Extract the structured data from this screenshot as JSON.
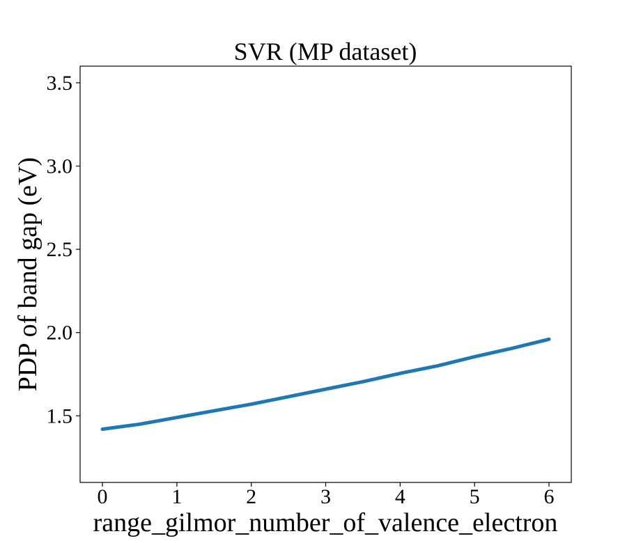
{
  "chart_data": {
    "type": "line",
    "title": "SVR (MP dataset)",
    "xlabel": "range_gilmor_number_of_valence_electron",
    "ylabel": "PDP of band gap (eV)",
    "xlim": [
      -0.3,
      6.3
    ],
    "ylim": [
      1.1,
      3.6
    ],
    "xticks": [
      "0",
      "1",
      "2",
      "3",
      "4",
      "5",
      "6"
    ],
    "yticks": [
      "1.5",
      "2.0",
      "2.5",
      "3.0",
      "3.5"
    ],
    "grid": false,
    "series": [
      {
        "color": "#1f77b4",
        "x": [
          0,
          0.5,
          1,
          1.5,
          2,
          2.5,
          3,
          3.5,
          4,
          4.5,
          5,
          5.5,
          6
        ],
        "y": [
          1.42,
          1.45,
          1.49,
          1.53,
          1.57,
          1.615,
          1.66,
          1.705,
          1.755,
          1.8,
          1.855,
          1.905,
          1.96
        ]
      }
    ]
  }
}
